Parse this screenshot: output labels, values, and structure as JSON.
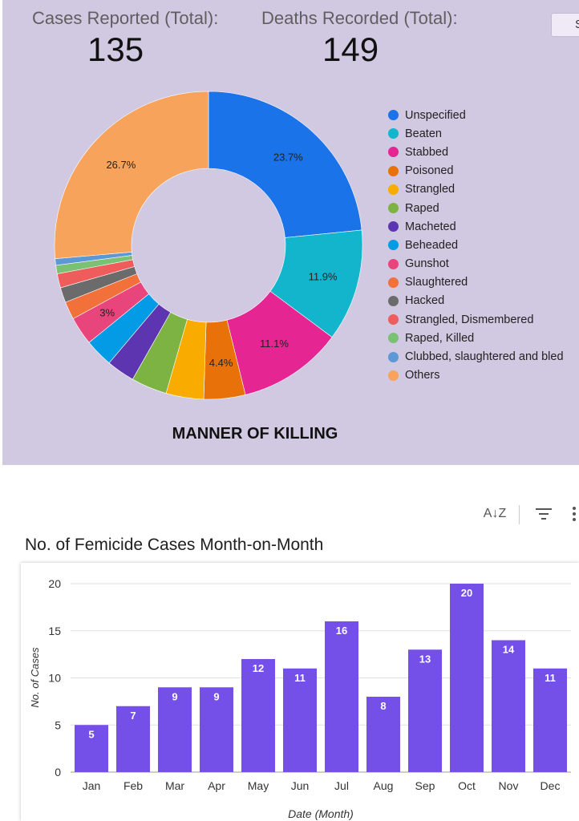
{
  "stats": {
    "cases_label": "Cases Reported (Total):",
    "cases_value": "135",
    "deaths_label": "Deaths Recorded (Total):",
    "deaths_value": "149"
  },
  "corner_button": {
    "label": "S"
  },
  "toolbar": {
    "sort_icon": "sort-az-icon",
    "filter_icon": "filter-icon",
    "more_icon": "more-vert-icon"
  },
  "chart_data": [
    {
      "type": "pie",
      "title": "MANNER OF KILLING",
      "categories": [
        "Unspecified",
        "Beaten",
        "Stabbed",
        "Poisoned",
        "Strangled",
        "Raped",
        "Macheted",
        "Beheaded",
        "Gunshot",
        "Slaughtered",
        "Hacked",
        "Strangled, Dismembered",
        "Raped, Killed",
        "Clubbed, slaughtered and bled",
        "Others"
      ],
      "values": [
        23.7,
        11.9,
        11.1,
        4.4,
        4.0,
        3.8,
        3.0,
        3.0,
        3.0,
        1.9,
        1.6,
        1.5,
        0.9,
        0.7,
        26.7
      ],
      "colors": [
        "#1a73e8",
        "#12b5cb",
        "#e52592",
        "#e8710a",
        "#f9ab00",
        "#7cb342",
        "#5e35b1",
        "#039be5",
        "#e8457c",
        "#f2703a",
        "#6b6b6b",
        "#ef5c5c",
        "#7ac174",
        "#5c97d6",
        "#f7a35c"
      ],
      "slice_labels": [
        "23.7%",
        "11.9%",
        "11.1%",
        "4.4%",
        "",
        "",
        "",
        "",
        "3%",
        "",
        "",
        "",
        "",
        "",
        "26.7%"
      ],
      "legend_position": "right"
    },
    {
      "type": "bar",
      "title": "No. of Femicide Cases Month-on-Month",
      "categories": [
        "Jan",
        "Feb",
        "Mar",
        "Apr",
        "May",
        "Jun",
        "Jul",
        "Aug",
        "Sep",
        "Oct",
        "Nov",
        "Dec"
      ],
      "values": [
        5,
        7,
        9,
        9,
        12,
        11,
        16,
        8,
        13,
        20,
        14,
        11
      ],
      "xlabel": "Date (Month)",
      "ylabel": "No. of Cases",
      "ylim": [
        0,
        20
      ],
      "yticks": [
        "0",
        "5",
        "10",
        "15",
        "20"
      ],
      "grid": true,
      "color": "#7450e8"
    }
  ]
}
